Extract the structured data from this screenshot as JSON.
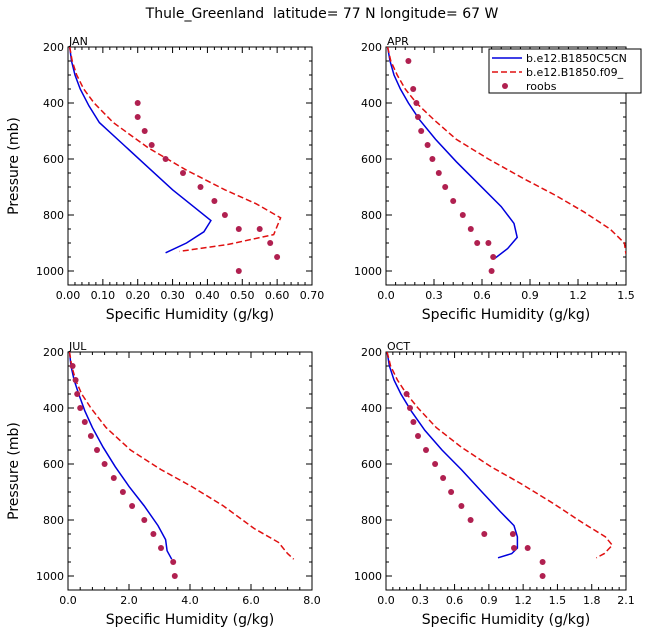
{
  "figure": {
    "title": "Thule_Greenland  latitude= 77 N longitude= 67 W"
  },
  "legend": {
    "placement": "top-right of APR panel",
    "entries": [
      {
        "label": "b.e12.B1850C5CN",
        "style": "solid",
        "color": "#0000dd"
      },
      {
        "label": "b.e12.B1850.f09_",
        "style": "dashed",
        "color": "#e01010"
      },
      {
        "label": "roobs",
        "style": "dots",
        "color": "#b02050"
      }
    ]
  },
  "colors": {
    "series1": "#0000dd",
    "series2": "#e01010",
    "obs": "#b02050"
  },
  "chart_data": [
    {
      "type": "line",
      "panel": "JAN",
      "title": "JAN",
      "xlabel": "Specific Humidity (g/kg)",
      "ylabel": "Pressure (mb)",
      "xlim": [
        0,
        0.7
      ],
      "ylim": [
        1050,
        200
      ],
      "xticks": [
        "0.00",
        "0.10",
        "0.20",
        "0.30",
        "0.40",
        "0.50",
        "0.60",
        "0.70"
      ],
      "yticks": [
        "200",
        "400",
        "600",
        "800",
        "1000"
      ],
      "series": [
        {
          "name": "b.e12.B1850C5CN",
          "points": [
            [
              0.005,
              200
            ],
            [
              0.01,
              250
            ],
            [
              0.02,
              300
            ],
            [
              0.035,
              350
            ],
            [
              0.06,
              410
            ],
            [
              0.09,
              470
            ],
            [
              0.16,
              550
            ],
            [
              0.23,
              630
            ],
            [
              0.3,
              710
            ],
            [
              0.36,
              770
            ],
            [
              0.41,
              820
            ],
            [
              0.39,
              860
            ],
            [
              0.34,
              900
            ],
            [
              0.28,
              935
            ]
          ]
        },
        {
          "name": "b.e12.B1850.f09_",
          "points": [
            [
              0.005,
              200
            ],
            [
              0.012,
              250
            ],
            [
              0.025,
              300
            ],
            [
              0.045,
              350
            ],
            [
              0.075,
              400
            ],
            [
              0.13,
              470
            ],
            [
              0.23,
              560
            ],
            [
              0.34,
              640
            ],
            [
              0.45,
              710
            ],
            [
              0.54,
              760
            ],
            [
              0.61,
              810
            ],
            [
              0.59,
              870
            ],
            [
              0.46,
              905
            ],
            [
              0.32,
              930
            ]
          ]
        },
        {
          "name": "roobs",
          "points": [
            [
              0.2,
              400
            ],
            [
              0.2,
              450
            ],
            [
              0.22,
              500
            ],
            [
              0.24,
              550
            ],
            [
              0.28,
              600
            ],
            [
              0.33,
              650
            ],
            [
              0.38,
              700
            ],
            [
              0.42,
              750
            ],
            [
              0.45,
              800
            ],
            [
              0.49,
              850
            ],
            [
              0.55,
              850
            ],
            [
              0.58,
              900
            ],
            [
              0.6,
              950
            ],
            [
              0.49,
              1000
            ]
          ]
        }
      ]
    },
    {
      "type": "line",
      "panel": "APR",
      "title": "APR",
      "xlabel": "Specific Humidity (g/kg)",
      "ylabel": "",
      "xlim": [
        0,
        1.5
      ],
      "ylim": [
        1050,
        200
      ],
      "xticks": [
        "0.0",
        "0.3",
        "0.6",
        "0.9",
        "1.2",
        "1.5"
      ],
      "yticks": [
        "200",
        "400",
        "600",
        "800",
        "1000"
      ],
      "series": [
        {
          "name": "b.e12.B1850C5CN",
          "points": [
            [
              0.01,
              200
            ],
            [
              0.025,
              250
            ],
            [
              0.05,
              300
            ],
            [
              0.09,
              350
            ],
            [
              0.14,
              400
            ],
            [
              0.21,
              460
            ],
            [
              0.31,
              530
            ],
            [
              0.44,
              610
            ],
            [
              0.58,
              690
            ],
            [
              0.72,
              770
            ],
            [
              0.8,
              830
            ],
            [
              0.82,
              880
            ],
            [
              0.76,
              920
            ],
            [
              0.68,
              955
            ]
          ]
        },
        {
          "name": "b.e12.B1850.f09_",
          "points": [
            [
              0.01,
              200
            ],
            [
              0.03,
              250
            ],
            [
              0.07,
              300
            ],
            [
              0.12,
              350
            ],
            [
              0.19,
              400
            ],
            [
              0.3,
              460
            ],
            [
              0.44,
              530
            ],
            [
              0.64,
              600
            ],
            [
              0.86,
              670
            ],
            [
              1.06,
              730
            ],
            [
              1.24,
              790
            ],
            [
              1.4,
              850
            ],
            [
              1.49,
              900
            ],
            [
              1.5,
              940
            ]
          ]
        },
        {
          "name": "roobs",
          "points": [
            [
              0.14,
              250
            ],
            [
              0.17,
              350
            ],
            [
              0.19,
              400
            ],
            [
              0.2,
              450
            ],
            [
              0.22,
              500
            ],
            [
              0.26,
              550
            ],
            [
              0.29,
              600
            ],
            [
              0.33,
              650
            ],
            [
              0.37,
              700
            ],
            [
              0.42,
              750
            ],
            [
              0.48,
              800
            ],
            [
              0.53,
              850
            ],
            [
              0.57,
              900
            ],
            [
              0.64,
              900
            ],
            [
              0.67,
              950
            ],
            [
              0.66,
              1000
            ]
          ]
        }
      ]
    },
    {
      "type": "line",
      "panel": "JUL",
      "title": "JUL",
      "xlabel": "Specific Humidity (g/kg)",
      "ylabel": "Pressure (mb)",
      "xlim": [
        0,
        8
      ],
      "ylim": [
        1050,
        200
      ],
      "xticks": [
        "0.0",
        "2.0",
        "4.0",
        "6.0",
        "8.0"
      ],
      "yticks": [
        "200",
        "400",
        "600",
        "800",
        "1000"
      ],
      "series": [
        {
          "name": "b.e12.B1850C5CN",
          "points": [
            [
              0.05,
              200
            ],
            [
              0.1,
              250
            ],
            [
              0.2,
              300
            ],
            [
              0.35,
              350
            ],
            [
              0.55,
              410
            ],
            [
              0.8,
              470
            ],
            [
              1.15,
              540
            ],
            [
              1.55,
              610
            ],
            [
              2.0,
              680
            ],
            [
              2.5,
              750
            ],
            [
              2.95,
              820
            ],
            [
              3.2,
              870
            ],
            [
              3.25,
              910
            ],
            [
              3.4,
              940
            ]
          ]
        },
        {
          "name": "b.e12.B1850.f09_",
          "points": [
            [
              0.05,
              200
            ],
            [
              0.12,
              250
            ],
            [
              0.25,
              300
            ],
            [
              0.45,
              350
            ],
            [
              0.75,
              400
            ],
            [
              1.25,
              470
            ],
            [
              2.05,
              550
            ],
            [
              3.05,
              620
            ],
            [
              4.05,
              680
            ],
            [
              5.1,
              750
            ],
            [
              6.1,
              830
            ],
            [
              6.9,
              880
            ],
            [
              7.2,
              920
            ],
            [
              7.4,
              940
            ]
          ]
        },
        {
          "name": "roobs",
          "points": [
            [
              0.15,
              250
            ],
            [
              0.25,
              300
            ],
            [
              0.3,
              350
            ],
            [
              0.4,
              400
            ],
            [
              0.55,
              450
            ],
            [
              0.75,
              500
            ],
            [
              0.95,
              550
            ],
            [
              1.2,
              600
            ],
            [
              1.5,
              650
            ],
            [
              1.8,
              700
            ],
            [
              2.1,
              750
            ],
            [
              2.5,
              800
            ],
            [
              2.8,
              850
            ],
            [
              3.05,
              900
            ],
            [
              3.45,
              950
            ],
            [
              3.5,
              1000
            ]
          ]
        }
      ]
    },
    {
      "type": "line",
      "panel": "OCT",
      "title": "OCT",
      "xlabel": "Specific Humidity (g/kg)",
      "ylabel": "",
      "xlim": [
        0,
        2.1
      ],
      "ylim": [
        1050,
        200
      ],
      "xticks": [
        "0.0",
        "0.3",
        "0.6",
        "0.9",
        "1.2",
        "1.5",
        "1.8",
        "2.1"
      ],
      "yticks": [
        "200",
        "400",
        "600",
        "800",
        "1000"
      ],
      "series": [
        {
          "name": "b.e12.B1850C5CN",
          "points": [
            [
              0.01,
              200
            ],
            [
              0.03,
              250
            ],
            [
              0.07,
              300
            ],
            [
              0.13,
              350
            ],
            [
              0.22,
              410
            ],
            [
              0.34,
              480
            ],
            [
              0.49,
              550
            ],
            [
              0.66,
              620
            ],
            [
              0.84,
              700
            ],
            [
              1.0,
              770
            ],
            [
              1.12,
              820
            ],
            [
              1.15,
              860
            ],
            [
              1.15,
              900
            ],
            [
              1.1,
              920
            ],
            [
              0.98,
              935
            ]
          ]
        },
        {
          "name": "b.e12.B1850.f09_",
          "points": [
            [
              0.01,
              200
            ],
            [
              0.04,
              250
            ],
            [
              0.1,
              300
            ],
            [
              0.18,
              350
            ],
            [
              0.28,
              400
            ],
            [
              0.44,
              470
            ],
            [
              0.66,
              540
            ],
            [
              0.92,
              610
            ],
            [
              1.18,
              670
            ],
            [
              1.46,
              740
            ],
            [
              1.72,
              810
            ],
            [
              1.92,
              860
            ],
            [
              1.98,
              890
            ],
            [
              1.91,
              920
            ],
            [
              1.84,
              935
            ]
          ]
        },
        {
          "name": "roobs",
          "points": [
            [
              0.18,
              350
            ],
            [
              0.21,
              400
            ],
            [
              0.24,
              450
            ],
            [
              0.28,
              500
            ],
            [
              0.35,
              550
            ],
            [
              0.43,
              600
            ],
            [
              0.5,
              650
            ],
            [
              0.57,
              700
            ],
            [
              0.66,
              750
            ],
            [
              0.74,
              800
            ],
            [
              0.86,
              850
            ],
            [
              1.11,
              850
            ],
            [
              1.12,
              900
            ],
            [
              1.24,
              900
            ],
            [
              1.37,
              950
            ],
            [
              1.37,
              1000
            ]
          ]
        }
      ]
    }
  ]
}
